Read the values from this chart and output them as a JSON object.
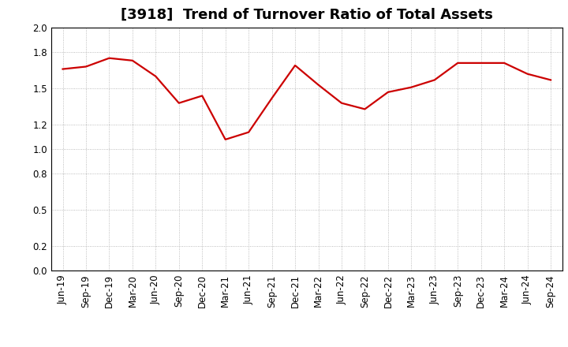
{
  "title": "[3918]  Trend of Turnover Ratio of Total Assets",
  "x_labels": [
    "Jun-19",
    "Sep-19",
    "Dec-19",
    "Mar-20",
    "Jun-20",
    "Sep-20",
    "Dec-20",
    "Mar-21",
    "Jun-21",
    "Sep-21",
    "Dec-21",
    "Mar-22",
    "Jun-22",
    "Sep-22",
    "Dec-22",
    "Mar-23",
    "Jun-23",
    "Sep-23",
    "Dec-23",
    "Mar-24",
    "Jun-24",
    "Sep-24"
  ],
  "y_values": [
    1.66,
    1.68,
    1.75,
    1.73,
    1.6,
    1.38,
    1.44,
    1.08,
    1.14,
    1.42,
    1.69,
    1.53,
    1.38,
    1.33,
    1.47,
    1.51,
    1.57,
    1.71,
    1.71,
    1.71,
    1.62,
    1.57
  ],
  "line_color": "#cc0000",
  "line_width": 1.6,
  "ylim": [
    0.0,
    2.0
  ],
  "yticks": [
    0.0,
    0.2,
    0.5,
    0.8,
    1.0,
    1.2,
    1.5,
    1.8,
    2.0
  ],
  "background_color": "#ffffff",
  "grid_color": "#aaaaaa",
  "title_fontsize": 13,
  "tick_fontsize": 8.5
}
